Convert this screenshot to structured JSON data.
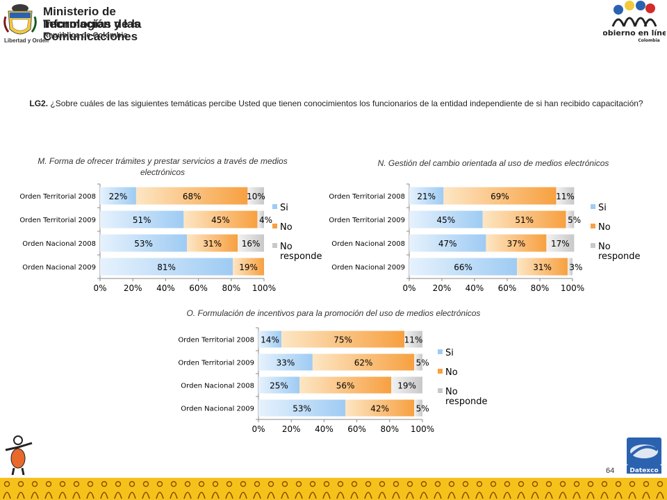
{
  "header": {
    "ministry_line1": "Ministerio de Tecnologías de la",
    "ministry_line2": "Información y las Comunicaciones",
    "ministry_line3": "República de Colombia",
    "motto": "Libertad y Orden",
    "gobierno_name": "Gobierno en línea",
    "gobierno_country": "Colombia"
  },
  "question": {
    "code": "LG2.",
    "text": "¿Sobre cuáles de las siguientes temáticas percibe Usted que tienen conocimientos los funcionarios de la entidad independiente de si han recibido capacitación?"
  },
  "colors": {
    "si": "#9ecbf3",
    "no": "#f7a040",
    "no_responde": "#c8c8c8"
  },
  "footer": {
    "page_number": "64",
    "brand": "Datexco"
  },
  "chart_data": [
    {
      "type": "bar",
      "orientation": "horizontal-stacked-100",
      "title": "M. Forma de  ofrecer trámites y prestar servicios a través de medios electrónicos",
      "categories": [
        "Orden Territorial 2008",
        "Orden Territorial 2009",
        "Orden Nacional 2008",
        "Orden Nacional 2009"
      ],
      "series": [
        {
          "name": "Si",
          "values": [
            22,
            51,
            53,
            81
          ]
        },
        {
          "name": "No",
          "values": [
            68,
            45,
            31,
            19
          ]
        },
        {
          "name": "No responde",
          "values": [
            10,
            4,
            16,
            0
          ]
        }
      ],
      "labels": [
        [
          "22%",
          "68%",
          "10%"
        ],
        [
          "51%",
          "45%",
          "4%"
        ],
        [
          "53%",
          "31%",
          "16%"
        ],
        [
          "81%",
          "19%",
          ""
        ]
      ],
      "xticks": [
        "0%",
        "20%",
        "40%",
        "60%",
        "80%",
        "100%"
      ],
      "xlim": [
        0,
        100
      ],
      "legend": "right"
    },
    {
      "type": "bar",
      "orientation": "horizontal-stacked-100",
      "title": "N. Gestión del cambio orientada al uso de medios electrónicos",
      "categories": [
        "Orden Territorial 2008",
        "Orden Territorial 2009",
        "Orden Nacional 2008",
        "Orden Nacional 2009"
      ],
      "series": [
        {
          "name": "Si",
          "values": [
            21,
            45,
            47,
            66
          ]
        },
        {
          "name": "No",
          "values": [
            69,
            51,
            37,
            31
          ]
        },
        {
          "name": "No responde",
          "values": [
            11,
            5,
            17,
            3
          ]
        }
      ],
      "labels": [
        [
          "21%",
          "69%",
          "11%"
        ],
        [
          "45%",
          "51%",
          "5%"
        ],
        [
          "47%",
          "37%",
          "17%"
        ],
        [
          "66%",
          "31%",
          "3%"
        ]
      ],
      "xticks": [
        "0%",
        "20%",
        "40%",
        "60%",
        "80%",
        "100%"
      ],
      "xlim": [
        0,
        100
      ],
      "legend": "right"
    },
    {
      "type": "bar",
      "orientation": "horizontal-stacked-100",
      "title": "O. Formulación de incentivos para la promoción del uso de medios electrónicos",
      "categories": [
        "Orden Territorial 2008",
        "Orden Territorial 2009",
        "Orden Nacional 2008",
        "Orden Nacional 2009"
      ],
      "series": [
        {
          "name": "Si",
          "values": [
            14,
            33,
            25,
            53
          ]
        },
        {
          "name": "No",
          "values": [
            75,
            62,
            56,
            42
          ]
        },
        {
          "name": "No responde",
          "values": [
            11,
            5,
            19,
            5
          ]
        }
      ],
      "labels": [
        [
          "14%",
          "75%",
          "11%"
        ],
        [
          "33%",
          "62%",
          "5%"
        ],
        [
          "25%",
          "56%",
          "19%"
        ],
        [
          "53%",
          "42%",
          "5%"
        ]
      ],
      "xticks": [
        "0%",
        "20%",
        "40%",
        "60%",
        "80%",
        "100%"
      ],
      "xlim": [
        0,
        100
      ],
      "legend": "right"
    }
  ]
}
